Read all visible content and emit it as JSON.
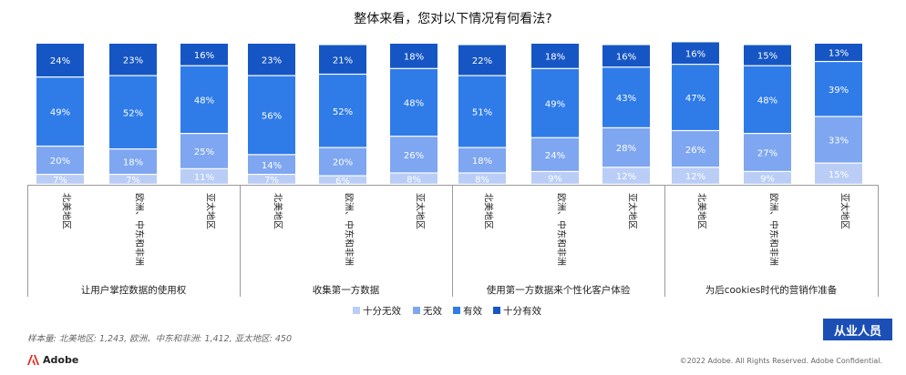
{
  "chart_data": {
    "type": "bar",
    "stacked": true,
    "title": "整体来看，您对以下情况有何看法?",
    "groups": [
      {
        "label": "让用户掌控数据的使用权",
        "categories": [
          "北美地区",
          "欧洲、中东和非洲",
          "亚太地区"
        ]
      },
      {
        "label": "收集第一方数据",
        "categories": [
          "北美地区",
          "欧洲、中东和非洲",
          "亚太地区"
        ]
      },
      {
        "label": "使用第一方数据来个性化客户体验",
        "categories": [
          "北美地区",
          "欧洲、中东和非洲",
          "亚太地区"
        ]
      },
      {
        "label": "为后cookies时代的营销作准备",
        "categories": [
          "北美地区",
          "欧洲、中东和非洲",
          "亚太地区"
        ]
      }
    ],
    "series": [
      {
        "name": "十分无效",
        "color": "#b9cdf6",
        "values": [
          7,
          7,
          11,
          7,
          6,
          8,
          8,
          9,
          12,
          12,
          9,
          15
        ]
      },
      {
        "name": "无效",
        "color": "#7ea6f1",
        "values": [
          20,
          18,
          25,
          14,
          20,
          26,
          18,
          24,
          28,
          26,
          27,
          33
        ]
      },
      {
        "name": "有效",
        "color": "#2f7ce8",
        "values": [
          49,
          52,
          48,
          56,
          52,
          48,
          51,
          49,
          43,
          47,
          48,
          39
        ]
      },
      {
        "name": "十分有效",
        "color": "#1656c4",
        "values": [
          24,
          23,
          16,
          23,
          21,
          18,
          22,
          18,
          16,
          16,
          15,
          13
        ]
      }
    ],
    "value_suffix": "%",
    "ylim": [
      0,
      100
    ],
    "legend_position": "bottom"
  },
  "footnote": "样本量: 北美地区: 1,243,  欧洲、中东和非洲: 1,412,  亚太地区: 450",
  "badge": "从业人员",
  "brand": "Adobe",
  "brand_icon": "adobe-logo-icon",
  "copyright": "©2022 Adobe. All Rights Reserved. Adobe Confidential."
}
